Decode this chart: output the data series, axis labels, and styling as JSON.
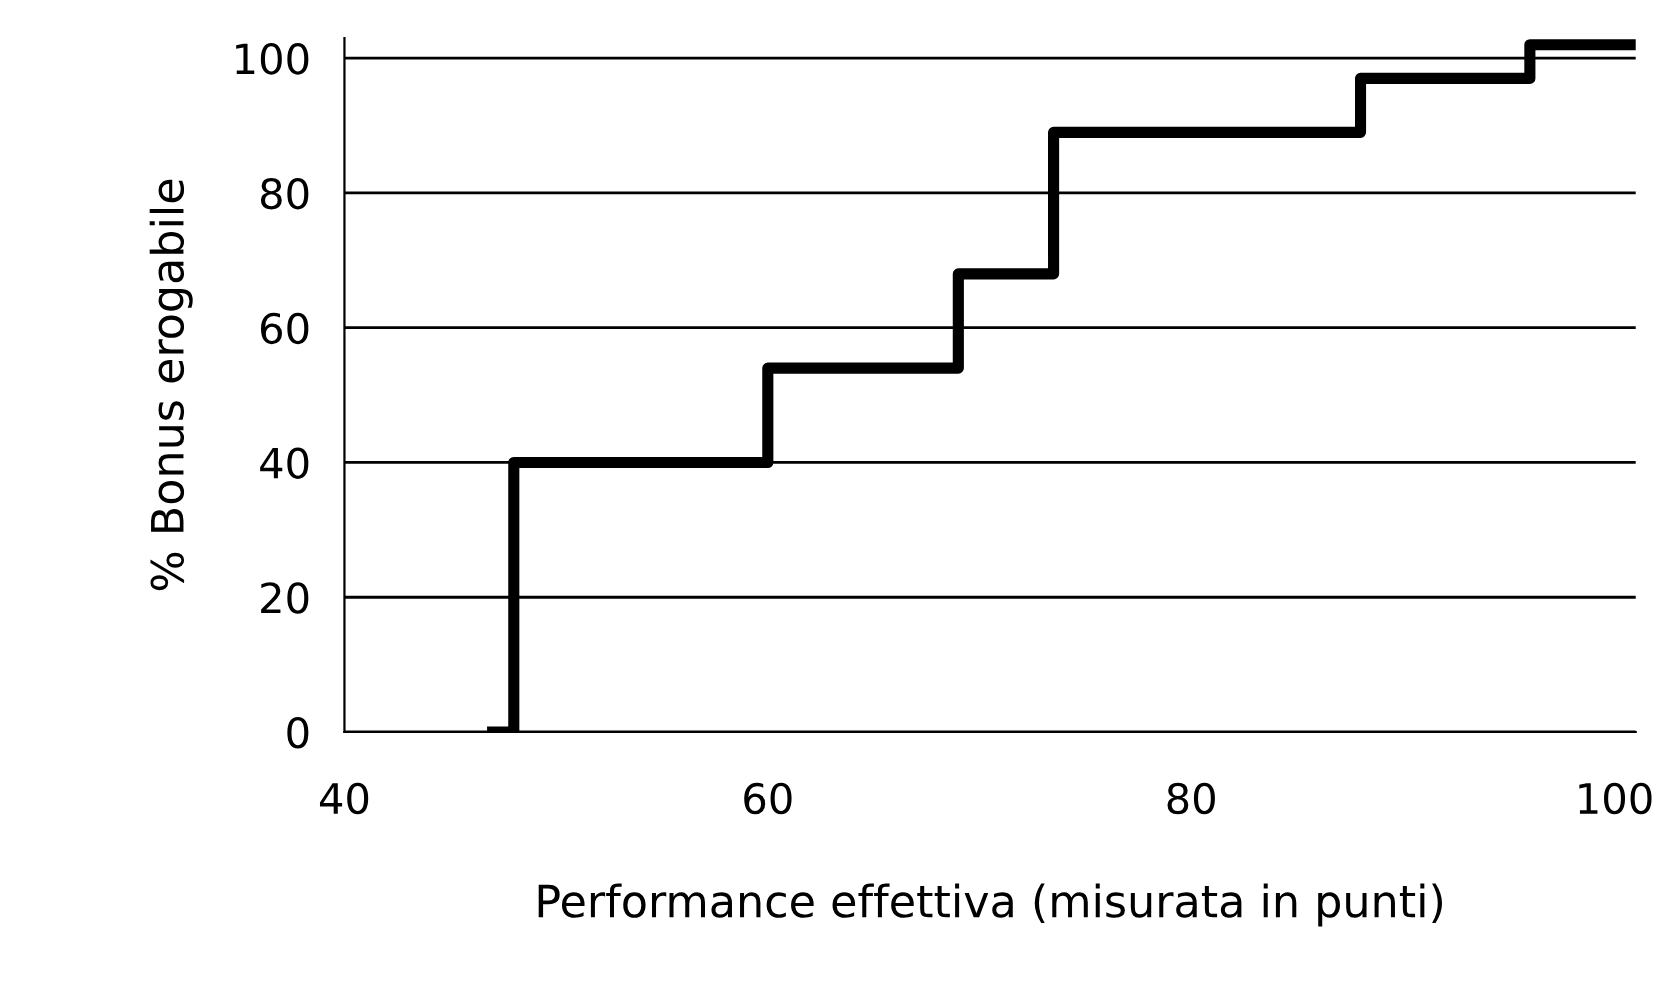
{
  "chart_data": {
    "type": "step",
    "xlabel": "Performance effettiva (misurata in punti)",
    "ylabel": "% Bonus erogabile",
    "x": [
      47,
      48,
      60,
      69,
      73.5,
      88,
      96,
      101
    ],
    "series": [
      {
        "color": "#000000",
        "values": [
          0,
          40,
          54,
          68,
          89,
          97,
          102,
          102
        ]
      }
    ],
    "xlim": [
      40,
      101
    ],
    "ylim": [
      0,
      103
    ],
    "xticks": [
      40,
      60,
      80,
      100
    ],
    "yticks": [
      0,
      20,
      40,
      60,
      80,
      100
    ],
    "grid": "y",
    "legend": false
  }
}
